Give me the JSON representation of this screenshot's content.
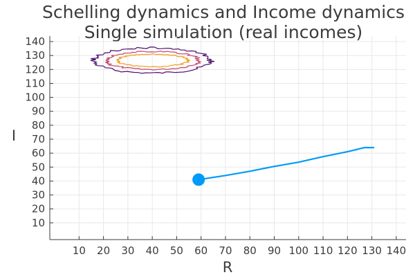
{
  "chart_data": {
    "type": "line",
    "title": [
      "Schelling dynamics and Income dynamics",
      "Single simulation (real incomes)"
    ],
    "xlabel": "R",
    "ylabel": "I",
    "xlim": [
      -2,
      144
    ],
    "ylim": [
      -2,
      144
    ],
    "xticks": [
      10,
      20,
      30,
      40,
      50,
      60,
      70,
      80,
      90,
      100,
      110,
      120,
      130,
      140
    ],
    "yticks": [
      10,
      20,
      30,
      40,
      50,
      60,
      70,
      80,
      90,
      100,
      110,
      120,
      130,
      140
    ],
    "grid": true,
    "legend": "none",
    "colors": {
      "trajectory": "#009af9",
      "contour_outer": "#4b0c6b",
      "contour_mid": "#c2456c",
      "contour_inner": "#f39a1b"
    },
    "series": [
      {
        "type": "line",
        "points": [
          [
            59,
            41
          ],
          [
            70,
            44
          ],
          [
            80,
            47
          ],
          [
            90,
            50.5
          ],
          [
            100,
            53.5
          ],
          [
            110,
            57.5
          ],
          [
            120,
            61
          ],
          [
            127,
            64
          ],
          [
            131,
            64
          ]
        ]
      },
      {
        "type": "marker",
        "points": [
          [
            59,
            41
          ]
        ]
      },
      {
        "type": "contour",
        "level": "outer",
        "center": [
          40,
          126.5
        ],
        "radius": [
          24,
          9
        ]
      },
      {
        "type": "contour",
        "level": "mid",
        "center": [
          40,
          126.5
        ],
        "radius": [
          19,
          6.5
        ]
      },
      {
        "type": "contour",
        "level": "inner",
        "center": [
          40,
          126.5
        ],
        "radius": [
          14.5,
          4.5
        ]
      }
    ]
  }
}
